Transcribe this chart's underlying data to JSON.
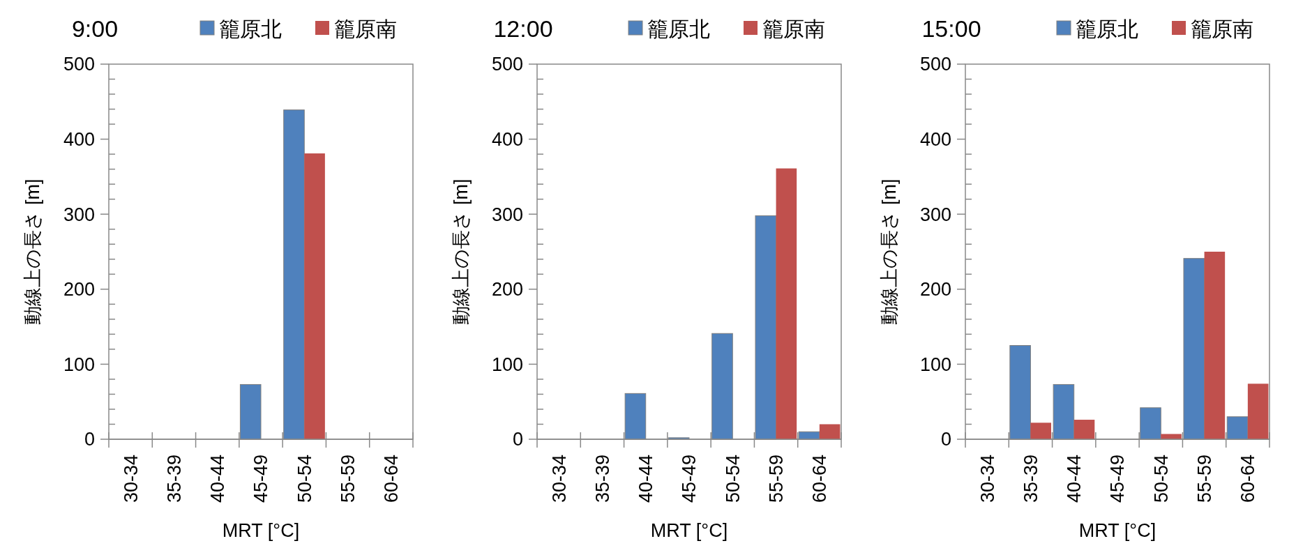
{
  "chart_data": [
    {
      "type": "bar",
      "title": "9:00",
      "xlabel": "MRT [°C]",
      "ylabel": "動線上の長さ [m]",
      "categories": [
        "30-34",
        "35-39",
        "40-44",
        "45-49",
        "50-54",
        "55-59",
        "60-64"
      ],
      "series": [
        {
          "name": "籠原北",
          "color": "#4f81bd",
          "values": [
            0,
            0,
            0,
            73,
            439,
            0,
            0
          ]
        },
        {
          "name": "籠原南",
          "color": "#c0504d",
          "values": [
            0,
            0,
            0,
            0,
            381,
            0,
            0
          ]
        }
      ],
      "ylim": [
        0,
        500
      ],
      "yticks": [
        0,
        {
          "value": 20,
          "label": null
        },
        {
          "value": 40,
          "label": null
        },
        {
          "value": 60,
          "label": null
        },
        {
          "value": 80,
          "label": null
        },
        100,
        {
          "value": 120,
          "label": null
        },
        {
          "value": 140,
          "label": null
        },
        {
          "value": 160,
          "label": null
        },
        {
          "value": 180,
          "label": null
        },
        200,
        {
          "value": 220,
          "label": null
        },
        {
          "value": 240,
          "label": null
        },
        {
          "value": 260,
          "label": null
        },
        {
          "value": 280,
          "label": null
        },
        300,
        {
          "value": 320,
          "label": null
        },
        {
          "value": 340,
          "label": null
        },
        {
          "value": 360,
          "label": null
        },
        {
          "value": 380,
          "label": null
        },
        400,
        {
          "value": 420,
          "label": null
        },
        {
          "value": 440,
          "label": null
        },
        {
          "value": 460,
          "label": null
        },
        {
          "value": 480,
          "label": null
        },
        500
      ],
      "legend": "top right",
      "grid": false
    },
    {
      "type": "bar",
      "title": "12:00",
      "xlabel": "MRT [°C]",
      "ylabel": "動線上の長さ [m]",
      "categories": [
        "30-34",
        "35-39",
        "40-44",
        "45-49",
        "50-54",
        "55-59",
        "60-64"
      ],
      "series": [
        {
          "name": "籠原北",
          "color": "#4f81bd",
          "values": [
            0,
            0,
            61,
            2,
            141,
            298,
            10
          ]
        },
        {
          "name": "籠原南",
          "color": "#c0504d",
          "values": [
            0,
            0,
            0,
            0,
            0,
            361,
            20
          ]
        }
      ],
      "ylim": [
        0,
        500
      ],
      "yticks": [
        0,
        {
          "value": 20,
          "label": null
        },
        {
          "value": 40,
          "label": null
        },
        {
          "value": 60,
          "label": null
        },
        {
          "value": 80,
          "label": null
        },
        100,
        {
          "value": 120,
          "label": null
        },
        {
          "value": 140,
          "label": null
        },
        {
          "value": 160,
          "label": null
        },
        {
          "value": 180,
          "label": null
        },
        200,
        {
          "value": 220,
          "label": null
        },
        {
          "value": 240,
          "label": null
        },
        {
          "value": 260,
          "label": null
        },
        {
          "value": 280,
          "label": null
        },
        300,
        {
          "value": 320,
          "label": null
        },
        {
          "value": 340,
          "label": null
        },
        {
          "value": 360,
          "label": null
        },
        {
          "value": 380,
          "label": null
        },
        400,
        {
          "value": 420,
          "label": null
        },
        {
          "value": 440,
          "label": null
        },
        {
          "value": 460,
          "label": null
        },
        {
          "value": 480,
          "label": null
        },
        500
      ],
      "legend": "top right",
      "grid": false
    },
    {
      "type": "bar",
      "title": "15:00",
      "xlabel": "MRT [°C]",
      "ylabel": "動線上の長さ [m]",
      "categories": [
        "30-34",
        "35-39",
        "40-44",
        "45-49",
        "50-54",
        "55-59",
        "60-64"
      ],
      "series": [
        {
          "name": "籠原北",
          "color": "#4f81bd",
          "values": [
            0,
            125,
            73,
            0,
            42,
            241,
            30
          ]
        },
        {
          "name": "籠原南",
          "color": "#c0504d",
          "values": [
            0,
            22,
            26,
            0,
            7,
            250,
            74
          ]
        }
      ],
      "ylim": [
        0,
        500
      ],
      "yticks": [
        0,
        {
          "value": 20,
          "label": null
        },
        {
          "value": 40,
          "label": null
        },
        {
          "value": 60,
          "label": null
        },
        {
          "value": 80,
          "label": null
        },
        100,
        {
          "value": 120,
          "label": null
        },
        {
          "value": 140,
          "label": null
        },
        {
          "value": 160,
          "label": null
        },
        {
          "value": 180,
          "label": null
        },
        200,
        {
          "value": 220,
          "label": null
        },
        {
          "value": 240,
          "label": null
        },
        {
          "value": 260,
          "label": null
        },
        {
          "value": 280,
          "label": null
        },
        300,
        {
          "value": 320,
          "label": null
        },
        {
          "value": 340,
          "label": null
        },
        {
          "value": 360,
          "label": null
        },
        {
          "value": 380,
          "label": null
        },
        400,
        {
          "value": 420,
          "label": null
        },
        {
          "value": 440,
          "label": null
        },
        {
          "value": 460,
          "label": null
        },
        {
          "value": 480,
          "label": null
        },
        500
      ],
      "legend": "top right",
      "grid": false
    }
  ]
}
